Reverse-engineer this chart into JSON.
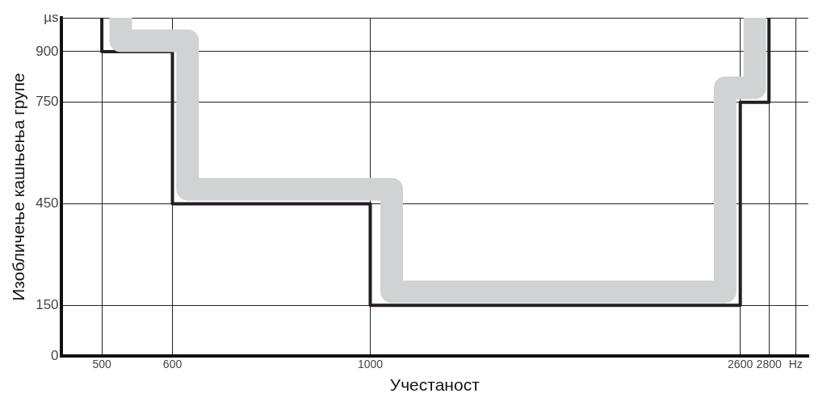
{
  "chart_data": {
    "type": "line",
    "xlabel": "Учестаност",
    "ylabel": "Изобличење кашњења групе",
    "log": "x",
    "grid": true,
    "legend": false,
    "marker": "none",
    "xlim": [
      450,
      3100
    ],
    "xticks": [
      500,
      600,
      1000,
      2600,
      2800,
      {
        "value": 3000,
        "label": "Hz"
      }
    ],
    "ylim": [
      0,
      1000
    ],
    "yticks": [
      0,
      150,
      450,
      750,
      900,
      {
        "value": 1000,
        "label": "µs"
      }
    ],
    "series": [
      {
        "color": "#d1d2d4",
        "x": [
          525,
          525,
          624,
          624,
          1057,
          1057,
          2500,
          2500,
          2700,
          2700
        ],
        "values": [
          1000,
          932,
          932,
          493,
          493,
          190,
          190,
          793,
          793,
          1000
        ]
      },
      {
        "color": "#231f20",
        "x": [
          500,
          500,
          600,
          600,
          1000,
          1000,
          2600,
          2600,
          2800,
          2800
        ],
        "values": [
          1000,
          900,
          900,
          450,
          450,
          150,
          150,
          750,
          750,
          1000
        ]
      }
    ]
  }
}
